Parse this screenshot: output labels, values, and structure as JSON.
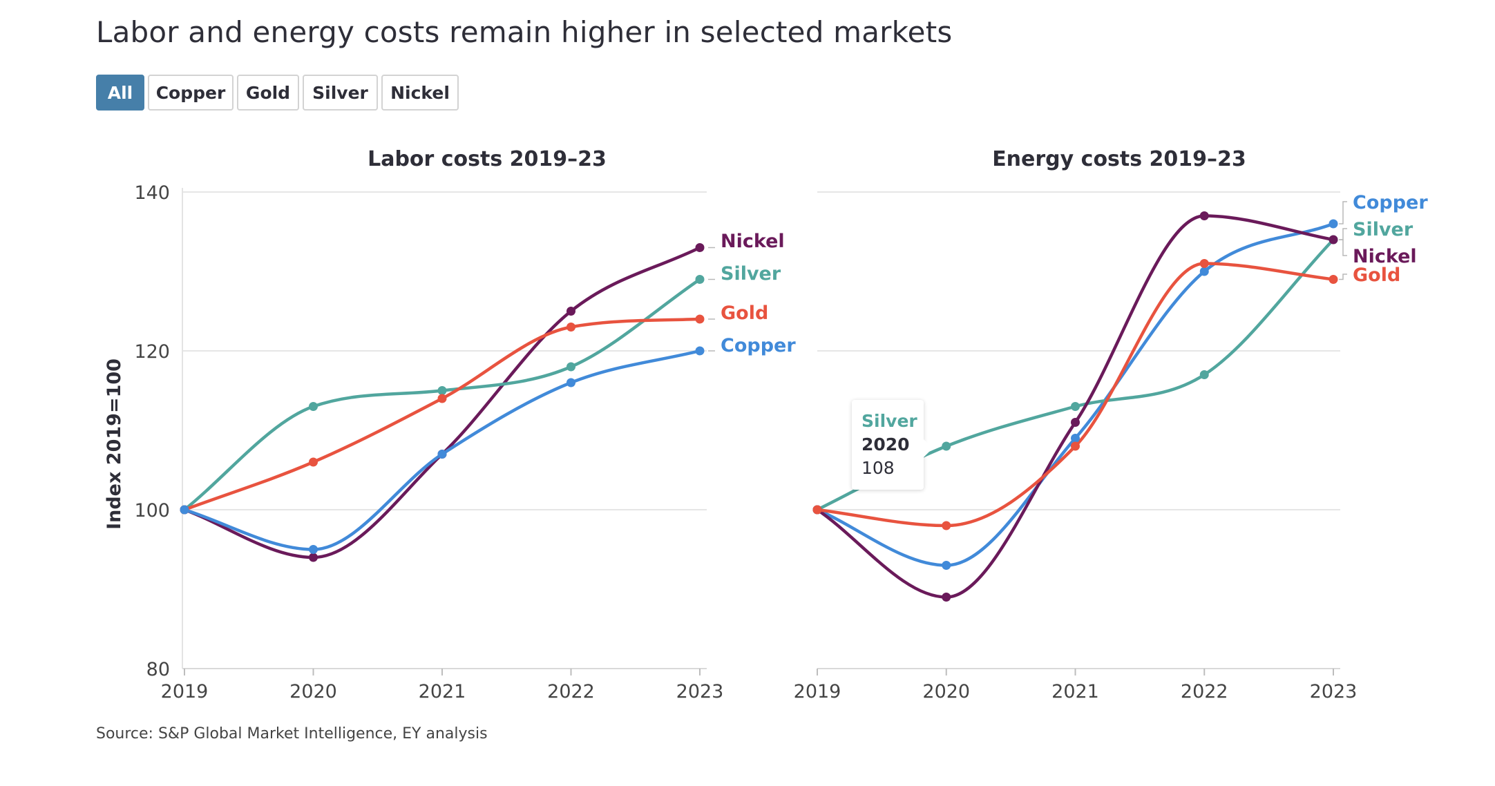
{
  "title": "Labor and energy costs remain higher in selected markets",
  "filters": [
    "All",
    "Copper",
    "Gold",
    "Silver",
    "Nickel"
  ],
  "active_filter": "All",
  "source": "Source: S&P Global Market Intelligence, EY analysis",
  "colors": {
    "Copper": "#418ad9",
    "Gold": "#e8533f",
    "Silver": "#51a69e",
    "Nickel": "#6a1a5a",
    "active_filter": "#467fa9",
    "grid": "#e6e6e6"
  },
  "tooltip": {
    "series": "Silver",
    "year": "2020",
    "value": "108"
  },
  "chart_data": [
    {
      "type": "line",
      "title": "Labor costs 2019–23",
      "ylabel": "Index 2019=100",
      "ylim": [
        80,
        140
      ],
      "yticks": [
        80,
        100,
        120,
        140
      ],
      "x": [
        "2019",
        "2020",
        "2021",
        "2022",
        "2023"
      ],
      "series": [
        {
          "name": "Nickel",
          "values": [
            100,
            94,
            107,
            125,
            133
          ]
        },
        {
          "name": "Silver",
          "values": [
            100,
            113,
            115,
            118,
            129
          ]
        },
        {
          "name": "Gold",
          "values": [
            100,
            106,
            114,
            123,
            124
          ]
        },
        {
          "name": "Copper",
          "values": [
            100,
            95,
            107,
            116,
            120
          ]
        }
      ]
    },
    {
      "type": "line",
      "title": "Energy costs 2019–23",
      "ylim": [
        80,
        140
      ],
      "yticks": [
        80,
        100,
        120,
        140
      ],
      "x": [
        "2019",
        "2020",
        "2021",
        "2022",
        "2023"
      ],
      "series": [
        {
          "name": "Copper",
          "values": [
            100,
            93,
            109,
            130,
            136
          ]
        },
        {
          "name": "Silver",
          "values": [
            100,
            108,
            113,
            117,
            134
          ]
        },
        {
          "name": "Nickel",
          "values": [
            100,
            89,
            111,
            137,
            134
          ]
        },
        {
          "name": "Gold",
          "values": [
            100,
            98,
            108,
            131,
            129
          ]
        }
      ]
    }
  ]
}
